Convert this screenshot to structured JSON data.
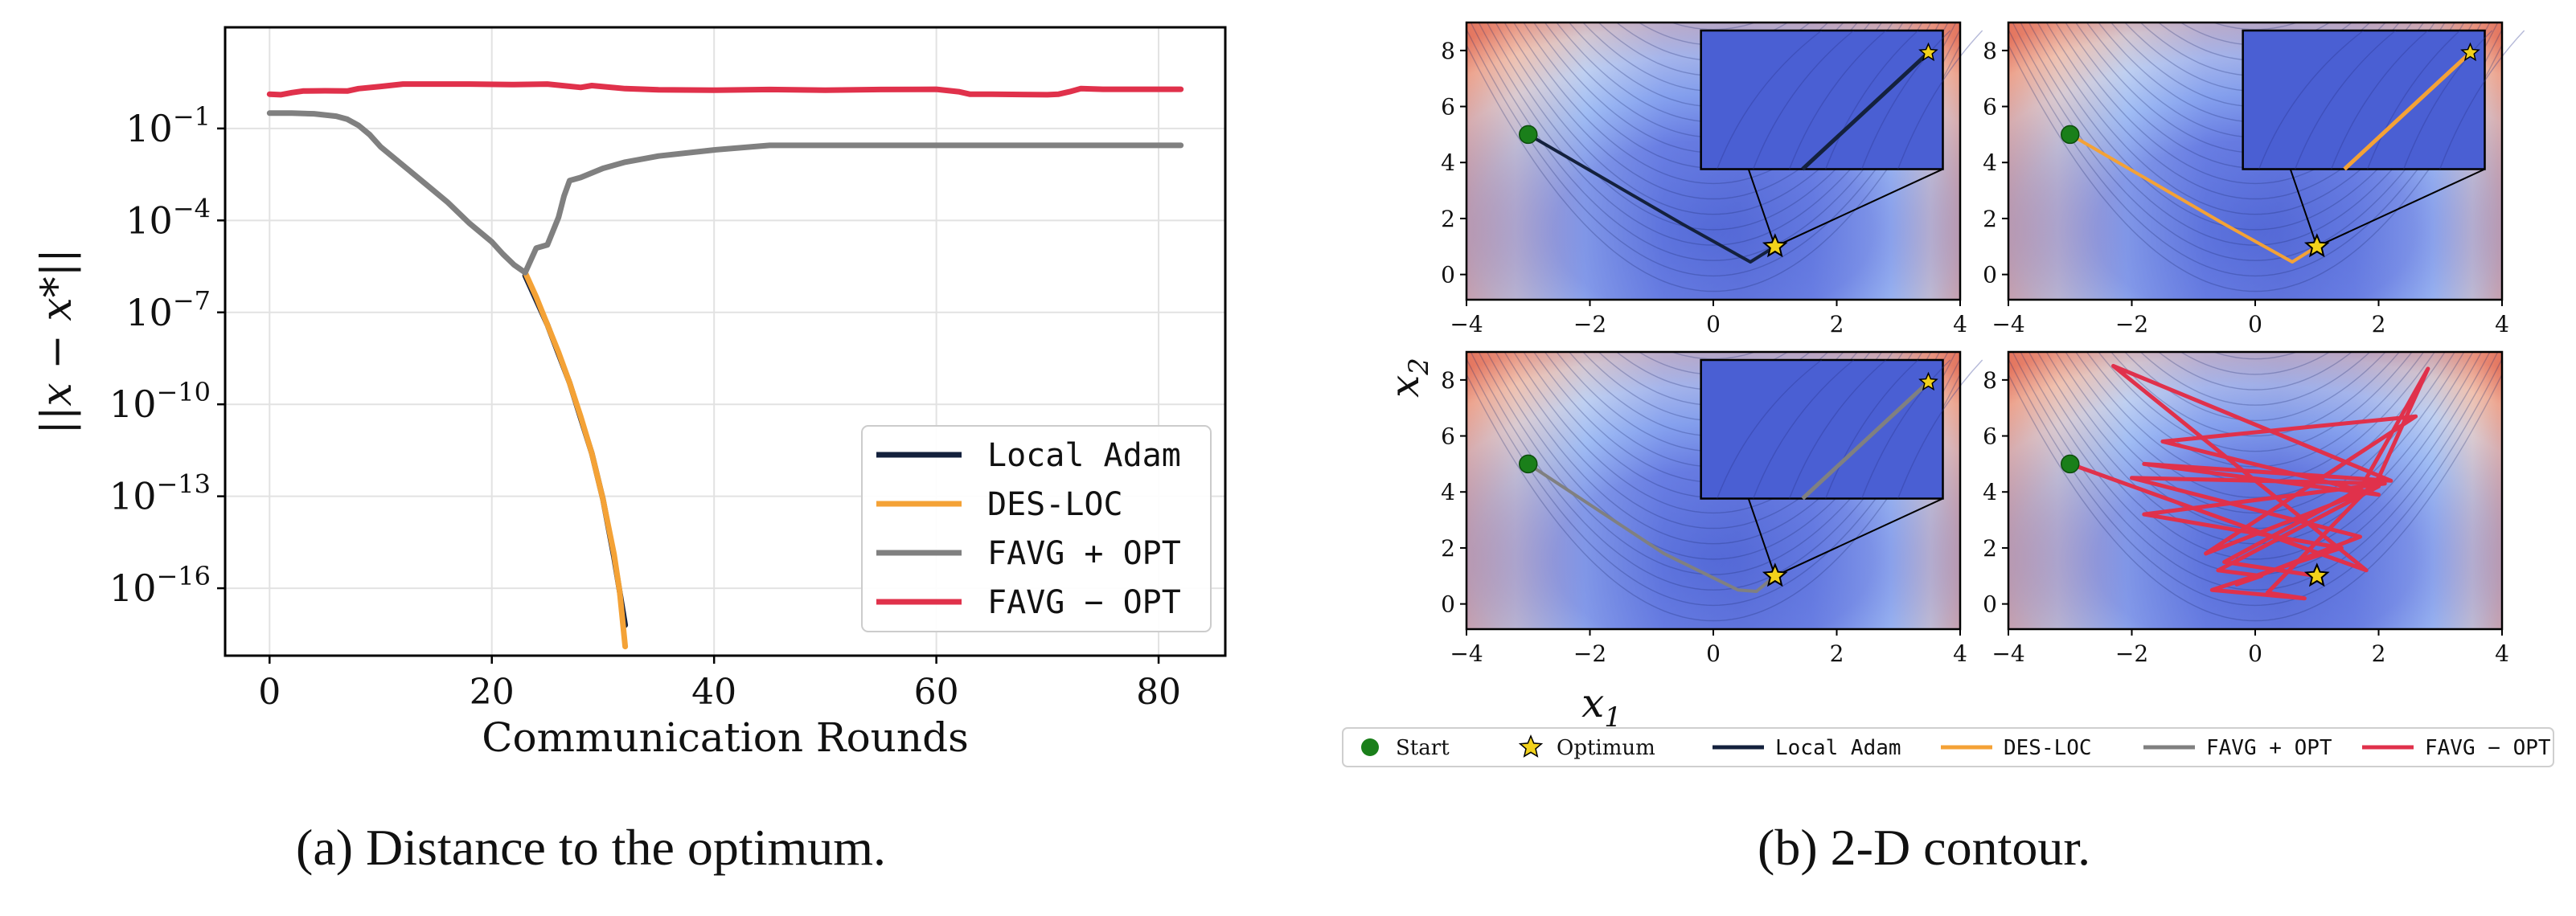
{
  "left_panel": {
    "ylabel": "||x − x*||",
    "xlabel": "Communication Rounds",
    "caption": "(a) Distance to the optimum."
  },
  "right_panel": {
    "xlabel": "x1",
    "ylabel": "x2",
    "caption": "(b) 2-D contour."
  },
  "legend_right": [
    {
      "key": "start",
      "label": "Start",
      "color": "#1a7f1a",
      "marker": "circle"
    },
    {
      "key": "optimum",
      "label": "Optimum",
      "color": "#f2d21b",
      "marker": "star"
    },
    {
      "key": "local_adam",
      "label": "Local Adam",
      "color": "#14213d",
      "marker": "line"
    },
    {
      "key": "des_loc",
      "label": "DES-LOC",
      "color": "#f4a236",
      "marker": "line"
    },
    {
      "key": "favg_opt",
      "label": "FAVG + OPT",
      "color": "#808080",
      "marker": "line"
    },
    {
      "key": "favg_minus_opt",
      "label": "FAVG − OPT",
      "color": "#e0314b",
      "marker": "line"
    }
  ],
  "chart_data": [
    {
      "type": "line",
      "title": "",
      "xlabel": "Communication Rounds",
      "ylabel": "||x − x*||",
      "xlim": [
        -4,
        86
      ],
      "ylim_log10": [
        -18.2,
        2.3
      ],
      "yscale": "log",
      "xticks": [
        0,
        20,
        40,
        60,
        80
      ],
      "xtick_labels": [
        "0",
        "20",
        "40",
        "60",
        "80"
      ],
      "yticks_log10": [
        -1,
        -4,
        -7,
        -10,
        -13,
        -16
      ],
      "ytick_labels": [
        "10",
        "10",
        "10",
        "10",
        "10",
        "10"
      ],
      "ytick_exponents": [
        "−1",
        "−4",
        "−7",
        "−10",
        "−13",
        "−16"
      ],
      "grid": true,
      "legend_position": "lower-right",
      "series": [
        {
          "name": "Local Adam",
          "color": "#14213d",
          "x": [
            23,
            25,
            27,
            29,
            30,
            31,
            32
          ],
          "y_log10": [
            -5.8,
            -7.4,
            -9.3,
            -11.6,
            -13.1,
            -15.0,
            -17.2
          ]
        },
        {
          "name": "DES-LOC",
          "color": "#f4a236",
          "x": [
            23,
            24,
            25,
            26,
            27,
            28,
            29,
            30,
            31,
            31.5,
            32
          ],
          "y_log10": [
            -5.7,
            -6.5,
            -7.4,
            -8.3,
            -9.3,
            -10.4,
            -11.6,
            -13.1,
            -14.9,
            -16.1,
            -17.9
          ]
        },
        {
          "name": "FAVG + OPT",
          "color": "#808080",
          "x": [
            0,
            2,
            4,
            6,
            7,
            8,
            9,
            10,
            12,
            14,
            16,
            18,
            20,
            21,
            22,
            23,
            24,
            25,
            26,
            26.5,
            27,
            28,
            30,
            32,
            35,
            40,
            45,
            50,
            60,
            70,
            82
          ],
          "y_log10": [
            -0.5,
            -0.5,
            -0.52,
            -0.6,
            -0.7,
            -0.9,
            -1.2,
            -1.6,
            -2.2,
            -2.8,
            -3.4,
            -4.1,
            -4.7,
            -5.1,
            -5.45,
            -5.7,
            -4.9,
            -4.8,
            -3.9,
            -3.2,
            -2.7,
            -2.6,
            -2.3,
            -2.1,
            -1.9,
            -1.7,
            -1.55,
            -1.55,
            -1.55,
            -1.55,
            -1.55
          ]
        },
        {
          "name": "FAVG − OPT",
          "color": "#e0314b",
          "x": [
            0,
            1,
            2,
            3,
            5,
            7,
            8,
            10,
            12,
            14,
            18,
            22,
            25,
            28,
            29,
            32,
            35,
            40,
            45,
            50,
            55,
            60,
            62,
            63,
            65,
            70,
            71,
            72,
            73,
            75,
            80,
            82
          ],
          "y_log10": [
            0.12,
            0.1,
            0.17,
            0.22,
            0.23,
            0.22,
            0.3,
            0.37,
            0.45,
            0.45,
            0.45,
            0.43,
            0.45,
            0.34,
            0.4,
            0.3,
            0.26,
            0.25,
            0.27,
            0.25,
            0.27,
            0.28,
            0.2,
            0.12,
            0.12,
            0.1,
            0.12,
            0.2,
            0.3,
            0.28,
            0.28,
            0.28
          ]
        }
      ]
    },
    {
      "type": "contour",
      "subplots": [
        {
          "name": "Local Adam",
          "color": "#14213d",
          "inset": true,
          "path": [
            [
              -3,
              5
            ],
            [
              -0.5,
              1.8
            ],
            [
              0.6,
              0.45
            ],
            [
              1,
              1
            ]
          ]
        },
        {
          "name": "DES-LOC",
          "color": "#f4a236",
          "inset": true,
          "path": [
            [
              -3,
              5
            ],
            [
              -0.5,
              1.8
            ],
            [
              0.6,
              0.45
            ],
            [
              1,
              1
            ]
          ]
        },
        {
          "name": "FAVG + OPT",
          "color": "#808080",
          "inset": true,
          "path": [
            [
              -3,
              5
            ],
            [
              -0.8,
              1.8
            ],
            [
              0.4,
              0.5
            ],
            [
              0.7,
              0.45
            ],
            [
              1,
              1
            ]
          ]
        },
        {
          "name": "FAVG − OPT",
          "color": "#e0314b",
          "inset": false,
          "path": [
            [
              -3,
              5
            ],
            [
              1.8,
              1.2
            ],
            [
              -2.3,
              8.5
            ],
            [
              2.2,
              4.4
            ],
            [
              -1.8,
              5.0
            ],
            [
              2.0,
              3.9
            ],
            [
              -1.5,
              5.8
            ],
            [
              2.6,
              6.7
            ],
            [
              -0.8,
              1.8
            ],
            [
              2.0,
              4.2
            ],
            [
              -0.6,
              1.2
            ],
            [
              0.1,
              1.0
            ],
            [
              -0.3,
              0.7
            ],
            [
              1.7,
              2.4
            ],
            [
              -2.0,
              4.5
            ],
            [
              2.1,
              4.3
            ],
            [
              -1.8,
              3.2
            ],
            [
              1.4,
              2.0
            ],
            [
              -0.7,
              0.5
            ],
            [
              0.8,
              0.2
            ],
            [
              0.2,
              0.4
            ],
            [
              2.0,
              4.5
            ],
            [
              2.8,
              8.4
            ],
            [
              1.7,
              4.1
            ],
            [
              -0.5,
              1.5
            ],
            [
              1.0,
              1.0
            ]
          ]
        }
      ],
      "start": [
        -3,
        5
      ],
      "optimum": [
        1,
        1
      ],
      "xlim": [
        -4,
        4
      ],
      "ylim": [
        -0.9,
        9
      ],
      "xticks": [
        -4,
        -2,
        0,
        2,
        4
      ],
      "xtick_labels": [
        "−4",
        "−2",
        "0",
        "2",
        "4"
      ],
      "yticks": [
        0,
        2,
        4,
        6,
        8
      ],
      "ytick_labels": [
        "0",
        "2",
        "4",
        "6",
        "8"
      ],
      "xlabel": "x1",
      "ylabel": "x2"
    }
  ]
}
